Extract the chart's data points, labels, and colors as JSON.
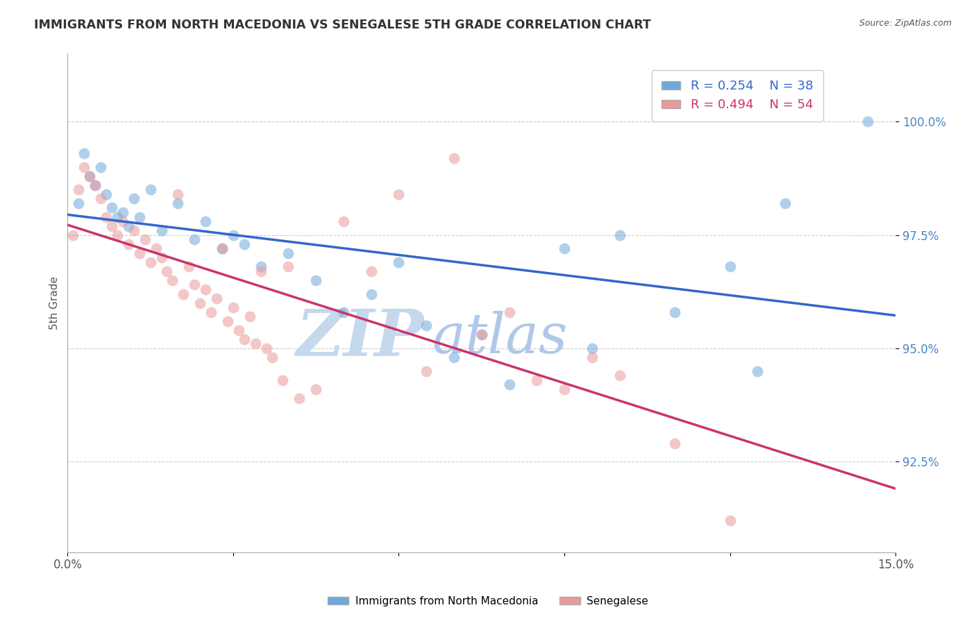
{
  "title": "IMMIGRANTS FROM NORTH MACEDONIA VS SENEGALESE 5TH GRADE CORRELATION CHART",
  "source": "Source: ZipAtlas.com",
  "ylabel": "5th Grade",
  "xlim": [
    0.0,
    15.0
  ],
  "ylim": [
    90.5,
    101.5
  ],
  "yticks": [
    92.5,
    95.0,
    97.5,
    100.0
  ],
  "ytick_labels": [
    "92.5%",
    "95.0%",
    "97.5%",
    "100.0%"
  ],
  "xticks": [
    0.0,
    3.0,
    6.0,
    9.0,
    12.0,
    15.0
  ],
  "xtick_labels": [
    "0.0%",
    "",
    "",
    "",
    "",
    "15.0%"
  ],
  "blue_label": "Immigrants from North Macedonia",
  "pink_label": "Senegalese",
  "blue_R": 0.254,
  "blue_N": 38,
  "pink_R": 0.494,
  "pink_N": 54,
  "blue_color": "#6fa8dc",
  "pink_color": "#ea9999",
  "blue_line_color": "#3366cc",
  "pink_line_color": "#cc3366",
  "watermark_zip": "ZIP",
  "watermark_atlas": "atlas",
  "watermark_color_zip": "#c5d8ed",
  "watermark_color_atlas": "#b0c8e8",
  "background_color": "#ffffff",
  "blue_points_x": [
    0.2,
    0.3,
    0.4,
    0.5,
    0.6,
    0.7,
    0.8,
    0.9,
    1.0,
    1.1,
    1.2,
    1.3,
    1.5,
    1.7,
    2.0,
    2.3,
    2.5,
    2.8,
    3.0,
    3.2,
    3.5,
    4.0,
    4.5,
    5.0,
    5.5,
    6.0,
    6.5,
    7.0,
    7.5,
    8.0,
    9.0,
    9.5,
    10.0,
    11.0,
    12.0,
    12.5,
    13.0,
    14.5
  ],
  "blue_points_y": [
    98.2,
    99.3,
    98.8,
    98.6,
    99.0,
    98.4,
    98.1,
    97.9,
    98.0,
    97.7,
    98.3,
    97.9,
    98.5,
    97.6,
    98.2,
    97.4,
    97.8,
    97.2,
    97.5,
    97.3,
    96.8,
    97.1,
    96.5,
    95.8,
    96.2,
    96.9,
    95.5,
    94.8,
    95.3,
    94.2,
    97.2,
    95.0,
    97.5,
    95.8,
    96.8,
    94.5,
    98.2,
    100.0
  ],
  "pink_points_x": [
    0.1,
    0.2,
    0.3,
    0.4,
    0.5,
    0.6,
    0.7,
    0.8,
    0.9,
    1.0,
    1.1,
    1.2,
    1.3,
    1.4,
    1.5,
    1.6,
    1.7,
    1.8,
    1.9,
    2.0,
    2.1,
    2.2,
    2.3,
    2.4,
    2.5,
    2.6,
    2.7,
    2.8,
    2.9,
    3.0,
    3.1,
    3.2,
    3.3,
    3.4,
    3.5,
    3.6,
    3.7,
    3.9,
    4.0,
    4.2,
    4.5,
    5.0,
    5.5,
    6.0,
    6.5,
    7.0,
    7.5,
    8.0,
    8.5,
    9.0,
    9.5,
    10.0,
    11.0,
    12.0
  ],
  "pink_points_y": [
    97.5,
    98.5,
    99.0,
    98.8,
    98.6,
    98.3,
    97.9,
    97.7,
    97.5,
    97.8,
    97.3,
    97.6,
    97.1,
    97.4,
    96.9,
    97.2,
    97.0,
    96.7,
    96.5,
    98.4,
    96.2,
    96.8,
    96.4,
    96.0,
    96.3,
    95.8,
    96.1,
    97.2,
    95.6,
    95.9,
    95.4,
    95.2,
    95.7,
    95.1,
    96.7,
    95.0,
    94.8,
    94.3,
    96.8,
    93.9,
    94.1,
    97.8,
    96.7,
    98.4,
    94.5,
    99.2,
    95.3,
    95.8,
    94.3,
    94.1,
    94.8,
    94.4,
    92.9,
    91.2
  ]
}
